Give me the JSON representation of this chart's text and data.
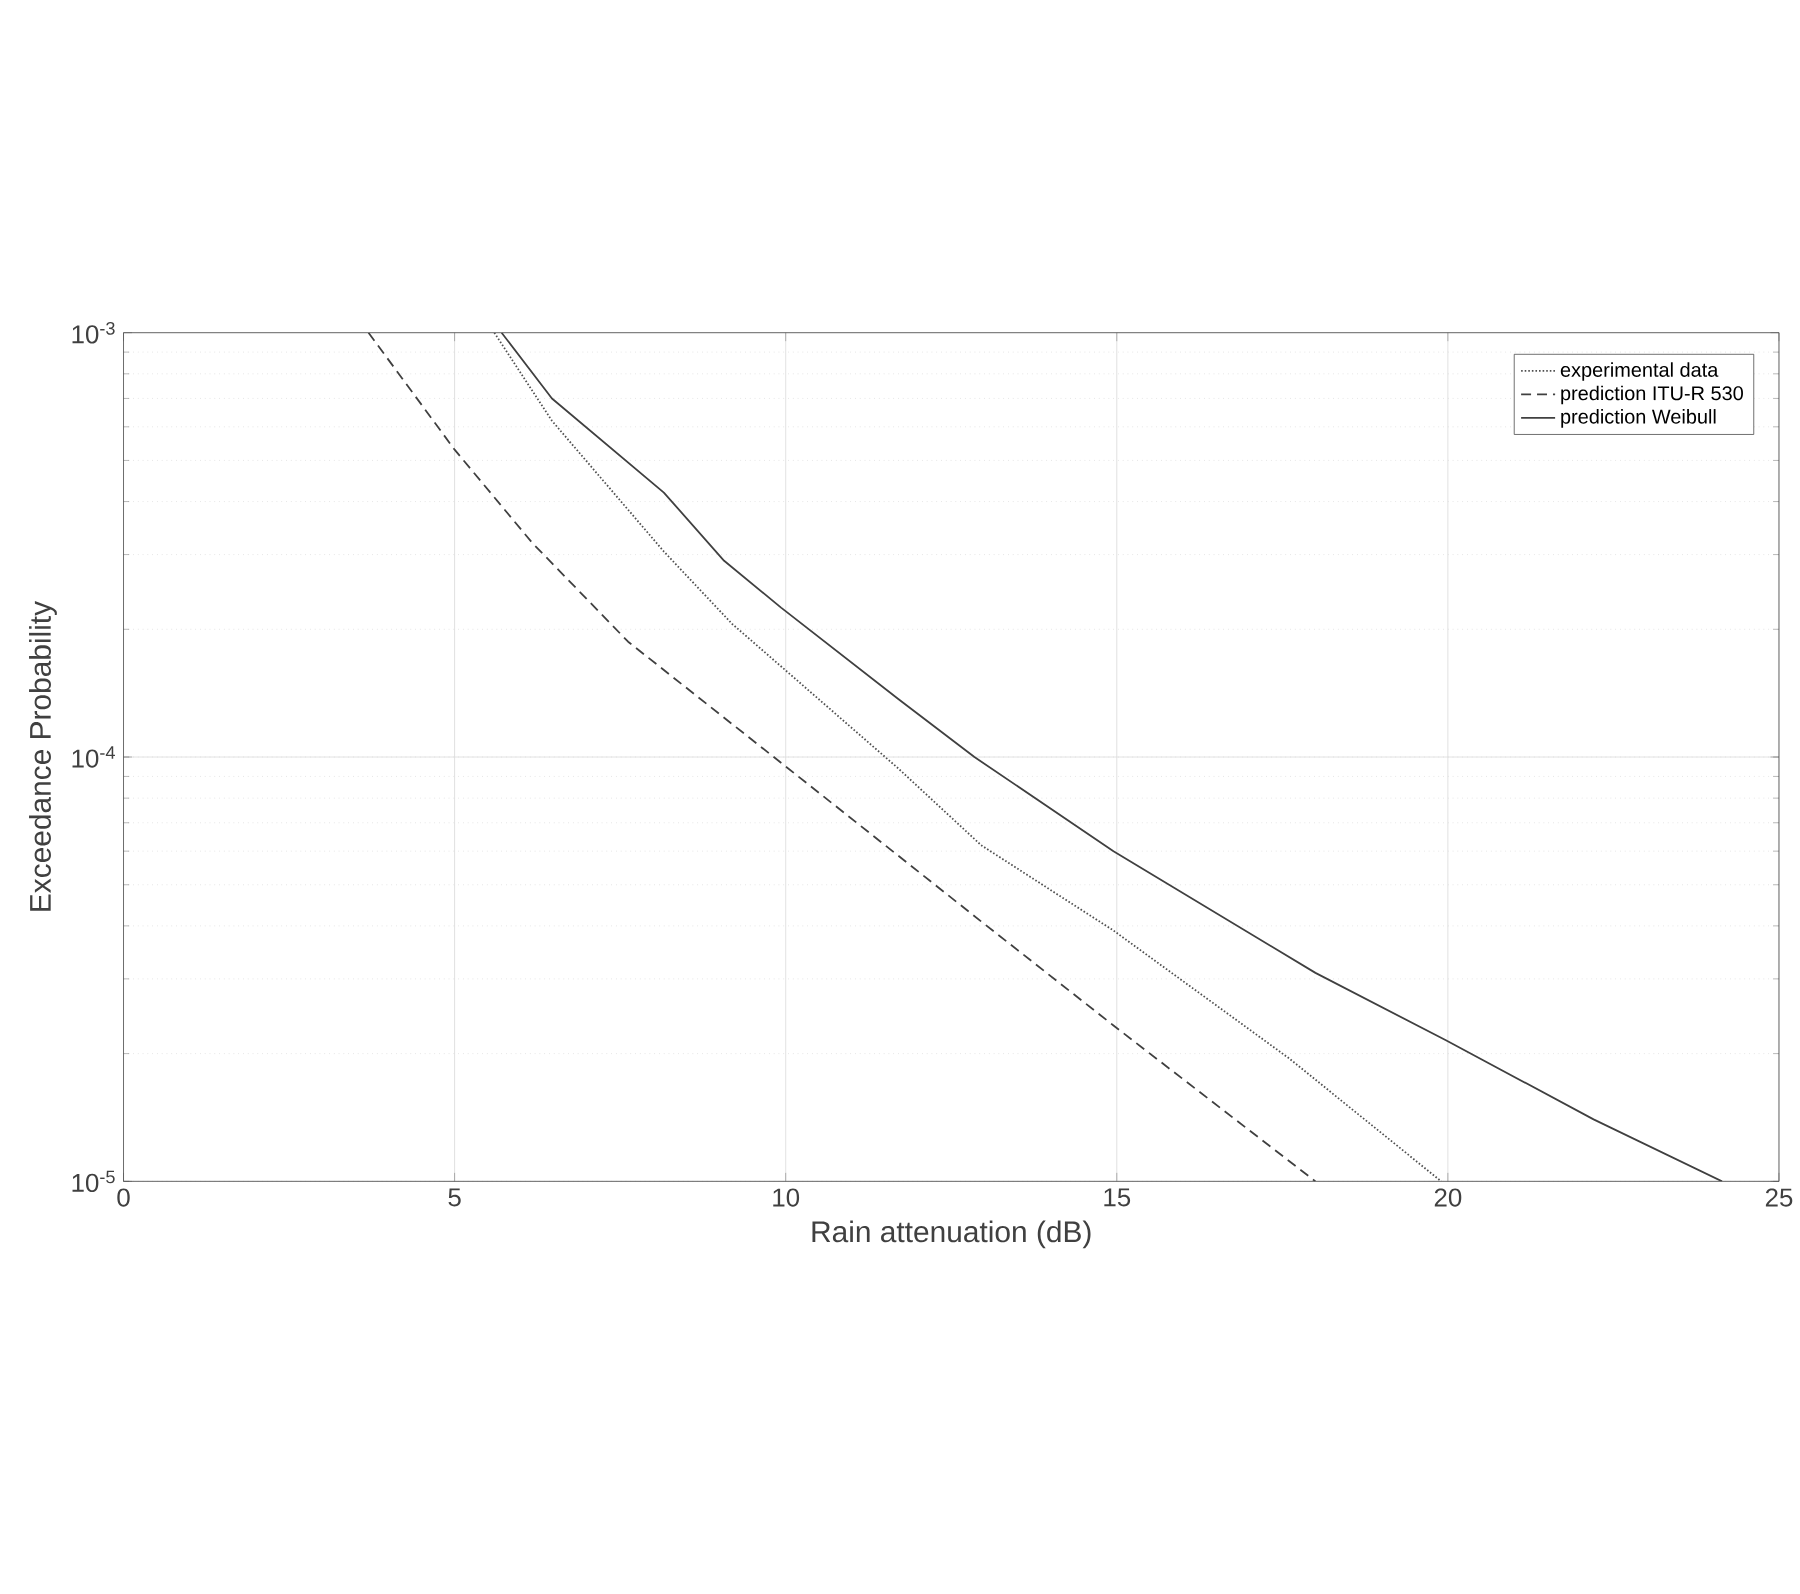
{
  "chart_data": {
    "type": "line",
    "xlabel": "Rain attenuation (dB)",
    "ylabel": "Exceedance Probability",
    "log": "y",
    "xlim": [
      0,
      25
    ],
    "xticks": [
      0,
      5,
      10,
      15,
      20,
      25
    ],
    "ylim": [
      1e-05,
      0.001
    ],
    "yticks": [
      {
        "value": 1e-05,
        "label": "10$^{-5}$"
      },
      {
        "value": 0.0001,
        "label": "10$^{-4}$"
      },
      {
        "value": 0.001,
        "label": "10$^{-3}$"
      }
    ],
    "grid": true,
    "legend": "top right",
    "marker": "none",
    "series": [
      {
        "name": "experimental data",
        "color": "#505050",
        "line_style": "dotted",
        "x": [
          5.6,
          6.47,
          8.16,
          9.19,
          9.94,
          11.7,
          12.95,
          14.95,
          17.6,
          19.9
        ],
        "values": [
          0.001,
          0.00062,
          0.000305,
          0.000206,
          0.000163,
          9.4e-05,
          6.2e-05,
          3.9e-05,
          1.95e-05,
          1e-05
        ]
      },
      {
        "name": "prediction ITU-R 530",
        "color": "#404040",
        "line_style": "dashed",
        "x": [
          3.7,
          5.0,
          6.17,
          7.62,
          10.0,
          12.95,
          14.95,
          18.0
        ],
        "values": [
          0.001,
          0.00053,
          0.00032,
          0.000187,
          9.5e-05,
          4.1e-05,
          2.33e-05,
          1e-05
        ]
      },
      {
        "name": "prediction Weibull",
        "color": "#404040",
        "line_style": "solid",
        "x": [
          5.71,
          6.47,
          8.16,
          9.07,
          9.93,
          11.7,
          12.85,
          14.95,
          18.0,
          19.97,
          22.2,
          24.14
        ],
        "values": [
          0.001,
          0.0007,
          0.00042,
          0.00029,
          0.000225,
          0.000137,
          0.0001,
          6e-05,
          3.1e-05,
          2.15e-05,
          1.4e-05,
          1e-05
        ]
      }
    ]
  }
}
